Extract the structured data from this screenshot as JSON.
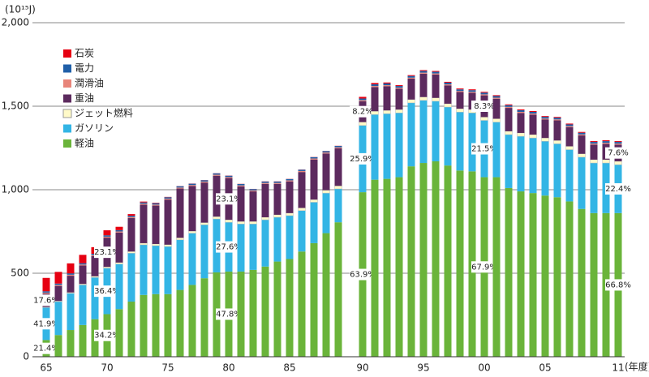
{
  "chart_data": {
    "type": "stacked-bar",
    "y_unit": "(10¹⁵J)",
    "x_unit": "(年度)",
    "categories": [
      "65",
      null,
      null,
      null,
      null,
      "70",
      null,
      null,
      null,
      null,
      "75",
      null,
      null,
      null,
      null,
      "80",
      null,
      null,
      null,
      null,
      "85",
      null,
      null,
      null,
      null,
      null,
      "90",
      null,
      null,
      null,
      null,
      "95",
      null,
      null,
      null,
      null,
      "00",
      null,
      null,
      null,
      null,
      "05",
      null,
      null,
      null,
      null,
      null,
      "11"
    ],
    "ylim": [
      0,
      2000
    ],
    "yticks": [
      0,
      500,
      {
        "value": 1000,
        "label": "1,000"
      },
      {
        "value": 1500,
        "label": "1,500"
      },
      {
        "value": 2000,
        "label": "2,000"
      }
    ],
    "grid": true,
    "series": [
      {
        "name": "石炭",
        "color": "#e60012",
        "values": [
          80,
          70,
          60,
          50,
          40,
          30,
          20,
          10,
          5,
          3,
          2,
          1,
          1,
          1,
          1,
          1,
          1,
          1,
          1,
          1,
          1,
          1,
          1,
          1,
          1,
          null,
          10,
          8,
          6,
          5,
          5,
          5,
          5,
          5,
          5,
          5,
          5,
          5,
          5,
          5,
          5,
          5,
          5,
          5,
          5,
          5,
          5,
          5
        ]
      },
      {
        "name": "電力",
        "color": "#1f5fa8",
        "values": [
          8,
          8,
          8,
          8,
          8,
          8,
          8,
          8,
          8,
          8,
          8,
          8,
          8,
          8,
          8,
          8,
          8,
          8,
          8,
          8,
          8,
          8,
          8,
          8,
          8,
          null,
          10,
          10,
          10,
          10,
          10,
          10,
          10,
          10,
          10,
          10,
          10,
          10,
          10,
          10,
          10,
          10,
          10,
          10,
          10,
          10,
          10,
          10
        ]
      },
      {
        "name": "潤滑油",
        "color": "#e8857a",
        "values": [
          6,
          6,
          6,
          6,
          6,
          6,
          6,
          6,
          6,
          6,
          6,
          6,
          6,
          6,
          6,
          6,
          6,
          6,
          6,
          6,
          6,
          6,
          6,
          6,
          6,
          null,
          6,
          6,
          6,
          6,
          6,
          6,
          6,
          6,
          6,
          6,
          6,
          6,
          6,
          6,
          6,
          6,
          6,
          6,
          6,
          6,
          6,
          6
        ]
      },
      {
        "name": "重油",
        "color": "#5c2a5e",
        "values": [
          80,
          90,
          100,
          110,
          120,
          175,
          180,
          200,
          230,
          230,
          270,
          295,
          270,
          240,
          245,
          250,
          210,
          180,
          200,
          185,
          190,
          215,
          240,
          220,
          225,
          null,
          125,
          145,
          145,
          125,
          125,
          140,
          140,
          110,
          100,
          100,
          130,
          120,
          140,
          120,
          120,
          110,
          120,
          115,
          110,
          90,
          95,
          100
        ],
        "share_labels": [
          "17.6%",
          null,
          null,
          null,
          null,
          "23.1%",
          null,
          null,
          null,
          null,
          null,
          null,
          null,
          null,
          null,
          "23.1%",
          null,
          null,
          null,
          null,
          null,
          null,
          null,
          null,
          null,
          null,
          "8.2%",
          null,
          null,
          null,
          null,
          null,
          null,
          null,
          null,
          null,
          "8.3%",
          null,
          null,
          null,
          null,
          null,
          null,
          null,
          null,
          null,
          null,
          "7.6%"
        ]
      },
      {
        "name": "ジェット燃料",
        "color": "#fffac8",
        "values": [
          3,
          4,
          5,
          6,
          7,
          8,
          9,
          10,
          10,
          10,
          11,
          12,
          12,
          13,
          14,
          15,
          15,
          15,
          15,
          15,
          15,
          16,
          16,
          17,
          18,
          null,
          20,
          20,
          20,
          20,
          20,
          20,
          20,
          20,
          20,
          20,
          20,
          20,
          20,
          20,
          20,
          20,
          20,
          20,
          20,
          20,
          20,
          20
        ]
      },
      {
        "name": "ガソリン",
        "color": "#33b5e5",
        "values": [
          195,
          200,
          220,
          240,
          250,
          275,
          270,
          290,
          300,
          290,
          285,
          300,
          310,
          320,
          320,
          295,
          285,
          275,
          280,
          265,
          260,
          245,
          245,
          240,
          200,
          null,
          400,
          390,
          390,
          385,
          380,
          375,
          360,
          350,
          350,
          350,
          340,
          330,
          320,
          330,
          330,
          325,
          320,
          310,
          310,
          300,
          300,
          290
        ],
        "share_labels": [
          "41.9%",
          null,
          null,
          null,
          null,
          "36.4%",
          null,
          null,
          null,
          null,
          null,
          null,
          null,
          null,
          null,
          "27.6%",
          null,
          null,
          null,
          null,
          null,
          null,
          null,
          null,
          null,
          null,
          "25.9%",
          null,
          null,
          null,
          null,
          null,
          null,
          null,
          null,
          null,
          "21.5%",
          null,
          null,
          null,
          null,
          null,
          null,
          null,
          null,
          null,
          null,
          "22.4%"
        ]
      },
      {
        "name": "軽油",
        "color": "#6ab43a",
        "values": [
          100,
          130,
          160,
          190,
          225,
          255,
          285,
          330,
          370,
          375,
          375,
          400,
          430,
          470,
          505,
          510,
          510,
          520,
          540,
          570,
          585,
          630,
          680,
          740,
          805,
          null,
          985,
          1060,
          1065,
          1075,
          1140,
          1160,
          1170,
          1145,
          1115,
          1110,
          1075,
          1075,
          1010,
          990,
          980,
          965,
          955,
          930,
          885,
          860,
          860,
          860
        ],
        "share_labels": [
          "21.4%",
          null,
          null,
          null,
          null,
          "34.2%",
          null,
          null,
          null,
          null,
          null,
          null,
          null,
          null,
          null,
          "47.8%",
          null,
          null,
          null,
          null,
          null,
          null,
          null,
          null,
          null,
          null,
          "63.9%",
          null,
          null,
          null,
          null,
          null,
          null,
          null,
          null,
          null,
          "67.9%",
          null,
          null,
          null,
          null,
          null,
          null,
          null,
          null,
          null,
          null,
          "66.8%"
        ]
      }
    ]
  }
}
